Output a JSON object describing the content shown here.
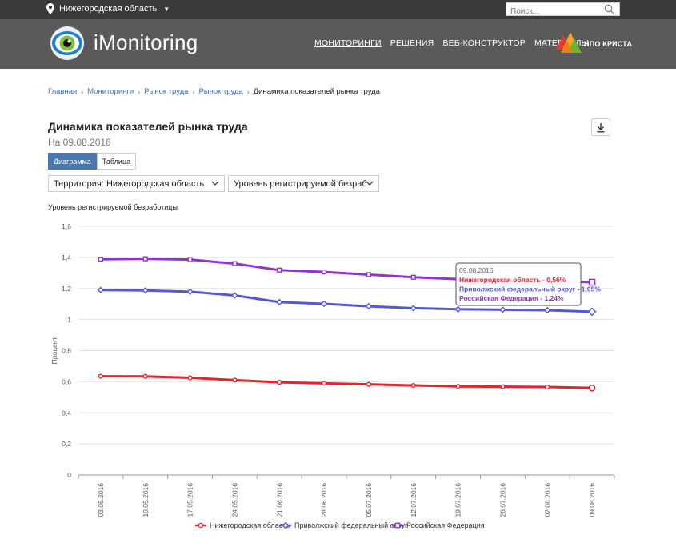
{
  "topbar": {
    "region": "Нижегородская область",
    "search_placeholder": "Поиск..."
  },
  "header": {
    "brand": "iMonitoring",
    "nav": [
      "МОНИТОРИНГИ",
      "РЕШЕНИЯ",
      "ВЕБ-КОНСТРУКТОР",
      "МАТЕРИАЛЫ"
    ],
    "partner": "НПО КРИСТА"
  },
  "breadcrumb": {
    "items": [
      "Главная",
      "Мониторинги",
      "Рынок труда",
      "Рынок труда"
    ],
    "current": "Динамика показателей рынка труда"
  },
  "page": {
    "title": "Динамика показателей рынка труда",
    "date": "На 09.08.2016"
  },
  "tabs": [
    "Диаграмма",
    "Таблица"
  ],
  "selects": {
    "territory": "Территория: Нижегородская область",
    "indicator": "Уровень регистрируемой безработицы"
  },
  "chart_label": "Уровень регистрируемой безработицы",
  "colors": {
    "series1": "#e8212b",
    "series2": "#5258d6",
    "series3": "#9033d0",
    "header": "#5a5a5a",
    "accent": "#4a78ad"
  },
  "chart_data": {
    "type": "line",
    "ylabel": "Процент",
    "ylim": [
      0,
      1.6
    ],
    "yticks": [
      "0",
      "0,2",
      "0,4",
      "0,6",
      "0,8",
      "1",
      "1,2",
      "1,4",
      "1,6"
    ],
    "categories": [
      "03.05.2016",
      "10.05.2016",
      "17.05.2016",
      "24.05.2016",
      "21.06.2016",
      "28.06.2016",
      "05.07.2016",
      "12.07.2016",
      "19.07.2016",
      "26.07.2016",
      "02.08.2016",
      "09.08.2016"
    ],
    "series": [
      {
        "name": "Нижегородская область",
        "values": [
          0.635,
          0.634,
          0.625,
          0.61,
          0.596,
          0.59,
          0.583,
          0.576,
          0.57,
          0.568,
          0.566,
          0.56
        ]
      },
      {
        "name": "Приволжский федеральный округ",
        "values": [
          1.19,
          1.187,
          1.179,
          1.155,
          1.112,
          1.101,
          1.085,
          1.073,
          1.066,
          1.063,
          1.06,
          1.05
        ]
      },
      {
        "name": "Российская Федерация",
        "values": [
          1.388,
          1.391,
          1.386,
          1.36,
          1.318,
          1.306,
          1.289,
          1.272,
          1.26,
          1.255,
          1.25,
          1.24
        ]
      }
    ],
    "tooltip": {
      "date": "09.08.2016",
      "lines": [
        "Нижегородская область - 0,56%",
        "Приволжский федеральный округ - 1,05%",
        "Российская Федерация - 1,24%"
      ]
    },
    "legend": "bottom",
    "grid": true
  }
}
